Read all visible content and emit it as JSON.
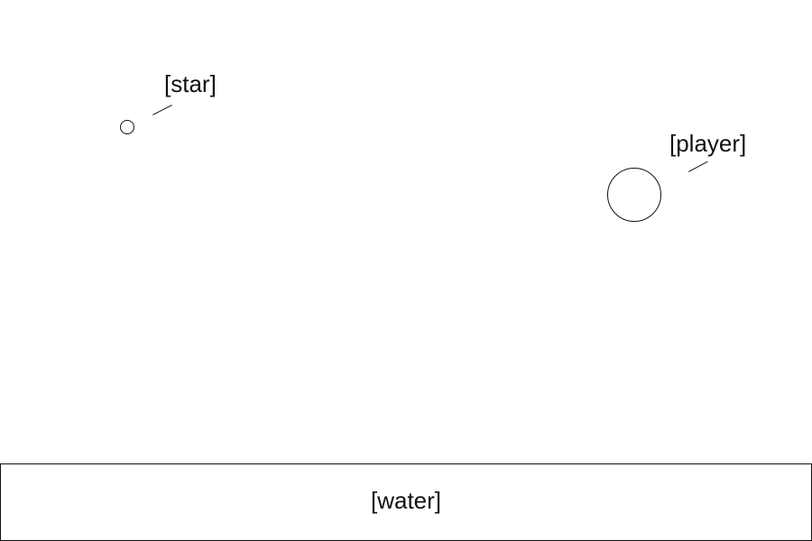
{
  "star": {
    "label": "[star]"
  },
  "player": {
    "label": "[player]"
  },
  "water": {
    "label": "[water]"
  }
}
